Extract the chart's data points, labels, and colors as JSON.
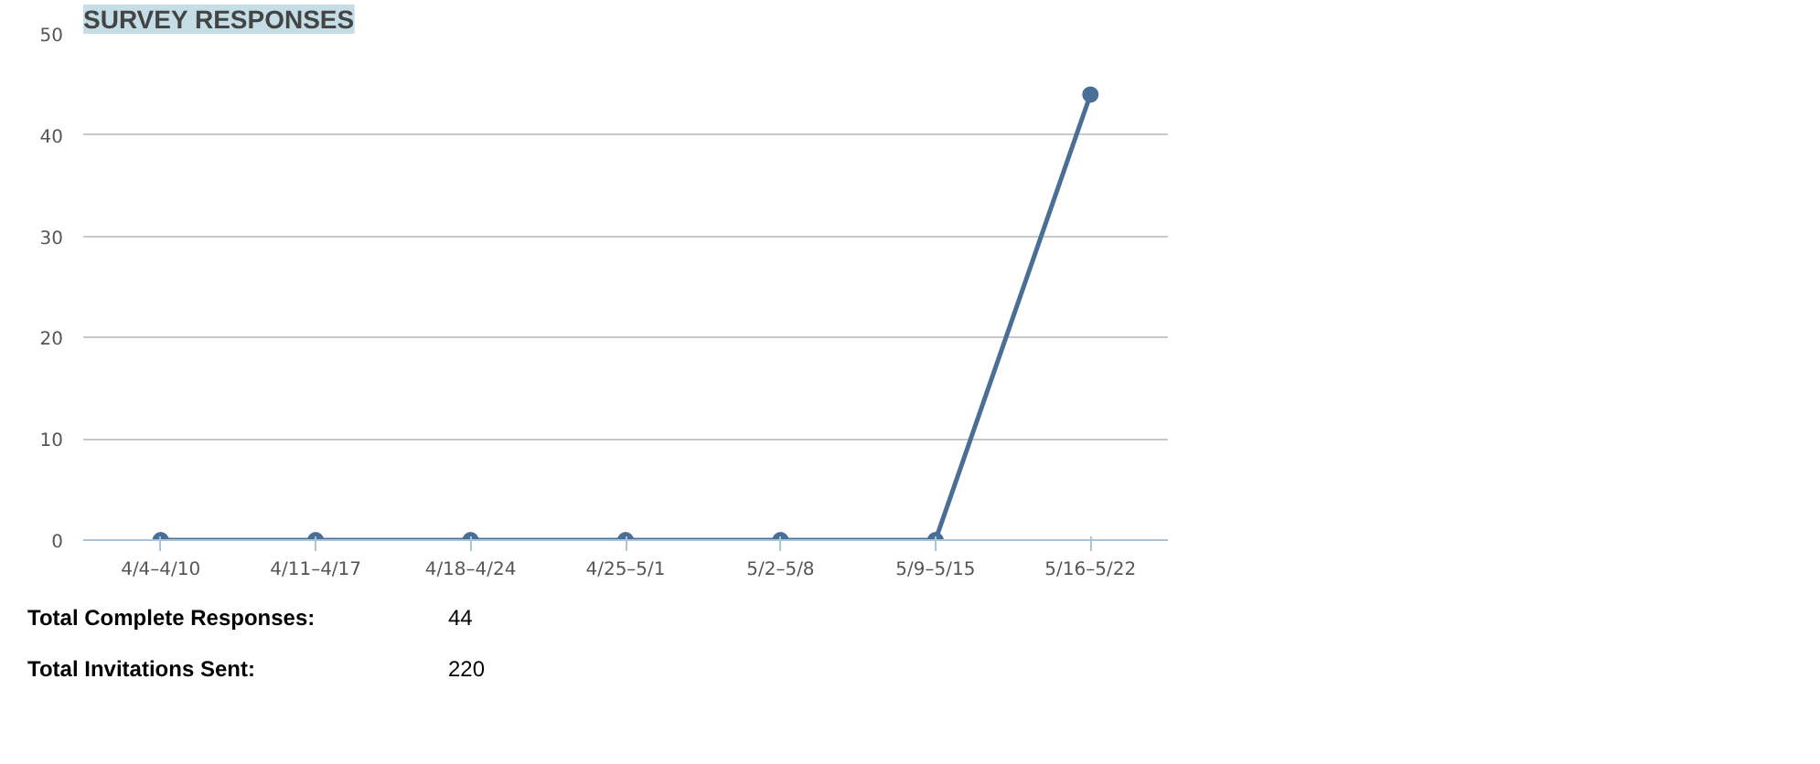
{
  "chart_data": {
    "type": "line",
    "title": "SURVEY RESPONSES",
    "categories": [
      "4/4–4/10",
      "4/11–4/17",
      "4/18–4/24",
      "4/25–5/1",
      "5/2–5/8",
      "5/9–5/15",
      "5/16–5/22"
    ],
    "series": [
      {
        "color": "#4a6f97",
        "values": [
          0,
          0,
          0,
          0,
          0,
          0,
          44
        ]
      }
    ],
    "ylim": [
      0,
      50
    ],
    "yticks": [
      0,
      10,
      20,
      30,
      40,
      50
    ],
    "grid": "y",
    "marker": "circle",
    "annotations": [
      "Total Complete Responses: 44",
      "Total Invitations Sent: 220"
    ]
  }
}
